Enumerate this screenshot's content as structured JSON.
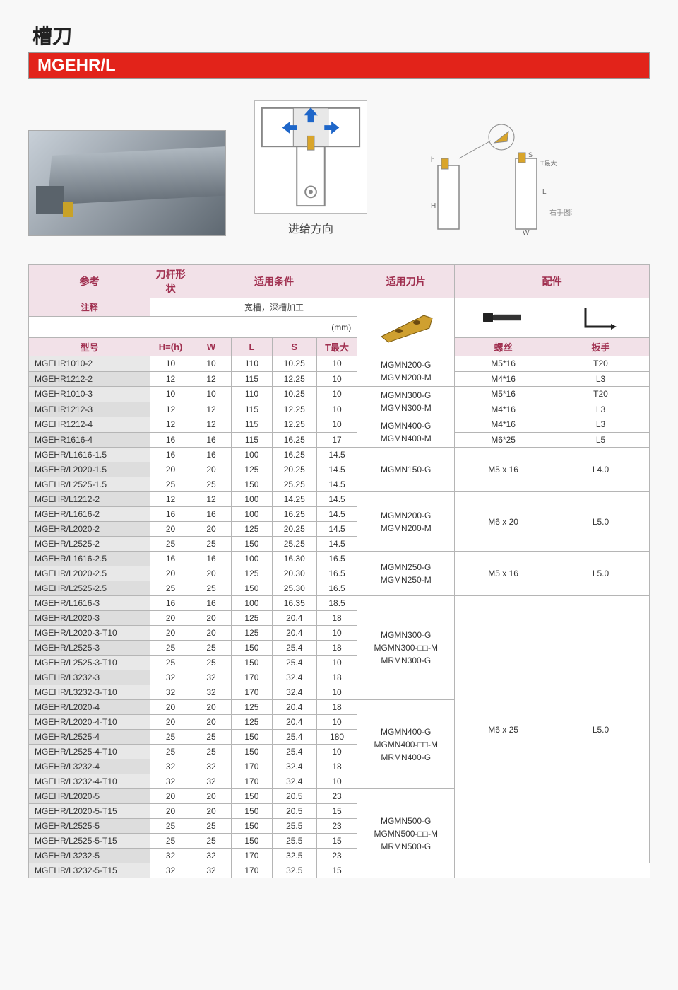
{
  "header": {
    "title": "槽刀",
    "model": "MGEHR/L",
    "title_color": "#222222",
    "bar_bg": "#e2231a",
    "bar_fg": "#ffffff"
  },
  "diagrams": {
    "feed_label": "进给方向",
    "right_annot": "右手图示"
  },
  "table": {
    "top_headers": {
      "ref": "参考",
      "shape": "刀杆形状",
      "conditions": "适用条件",
      "inserts": "适用刀片",
      "accessories": "配件"
    },
    "sub_headers": {
      "note": "注释",
      "cond_text": "宽槽，深槽加工",
      "unit": "(mm)"
    },
    "col_headers": {
      "model": "型号",
      "h": "H=(h)",
      "w": "W",
      "l": "L",
      "s": "S",
      "t": "T最大",
      "screw": "螺丝",
      "wrench": "扳手"
    },
    "colors": {
      "header_bg": "#f2e1e8",
      "header_fg": "#a03050",
      "border": "#b5b5b5",
      "row_alt_bg": "#e8e8e8"
    },
    "groups": [
      {
        "insert": "MGMN200-G\nMGMN200-M",
        "screw": "M5*16",
        "wrench": "T20",
        "rows": [
          [
            "MGEHR1010-2",
            "10",
            "10",
            "110",
            "10.25",
            "10"
          ]
        ]
      },
      {
        "insert": "",
        "screw": "M4*16",
        "wrench": "L3",
        "rows": [
          [
            "MGEHR1212-2",
            "12",
            "12",
            "115",
            "12.25",
            "10"
          ]
        ]
      },
      {
        "insert": "MGMN300-G\nMGMN300-M",
        "screw": "M5*16",
        "wrench": "T20",
        "rows": [
          [
            "MGEHR1010-3",
            "10",
            "10",
            "110",
            "10.25",
            "10"
          ]
        ]
      },
      {
        "insert": "",
        "screw": "M4*16",
        "wrench": "L3",
        "rows": [
          [
            "MGEHR1212-3",
            "12",
            "12",
            "115",
            "12.25",
            "10"
          ]
        ]
      },
      {
        "insert": "MGMN400-G\nMGMN400-M",
        "screw": "M4*16",
        "wrench": "L3",
        "rows": [
          [
            "MGEHR1212-4",
            "12",
            "12",
            "115",
            "12.25",
            "10"
          ]
        ]
      },
      {
        "insert": "",
        "screw": "M6*25",
        "wrench": "L5",
        "rows": [
          [
            "MGEHR1616-4",
            "16",
            "16",
            "115",
            "16.25",
            "17"
          ]
        ]
      },
      {
        "insert": "MGMN150-G",
        "screw": "M5 x 16",
        "wrench": "L4.0",
        "rows": [
          [
            "MGEHR/L1616-1.5",
            "16",
            "16",
            "100",
            "16.25",
            "14.5"
          ],
          [
            "MGEHR/L2020-1.5",
            "20",
            "20",
            "125",
            "20.25",
            "14.5"
          ],
          [
            "MGEHR/L2525-1.5",
            "25",
            "25",
            "150",
            "25.25",
            "14.5"
          ]
        ]
      },
      {
        "insert": "MGMN200-G\nMGMN200-M",
        "screw": "M6 x 20",
        "wrench": "L5.0",
        "rows": [
          [
            "MGEHR/L1212-2",
            "12",
            "12",
            "100",
            "14.25",
            "14.5"
          ],
          [
            "MGEHR/L1616-2",
            "16",
            "16",
            "100",
            "16.25",
            "14.5"
          ],
          [
            "MGEHR/L2020-2",
            "20",
            "20",
            "125",
            "20.25",
            "14.5"
          ],
          [
            "MGEHR/L2525-2",
            "25",
            "25",
            "150",
            "25.25",
            "14.5"
          ]
        ]
      },
      {
        "insert": "MGMN250-G\nMGMN250-M",
        "screw": "M5 x 16",
        "wrench": "L5.0",
        "rows": [
          [
            "MGEHR/L1616-2.5",
            "16",
            "16",
            "100",
            "16.30",
            "16.5"
          ],
          [
            "MGEHR/L2020-2.5",
            "20",
            "20",
            "125",
            "20.30",
            "16.5"
          ],
          [
            "MGEHR/L2525-2.5",
            "25",
            "25",
            "150",
            "25.30",
            "16.5"
          ]
        ]
      },
      {
        "insert": "MGMN300-G\nMGMN300-□□-M\nMRMN300-G",
        "screw": "M6 x 25",
        "wrench": "L5.0",
        "screw_span": 18,
        "wrench_span": 18,
        "rows": [
          [
            "MGEHR/L1616-3",
            "16",
            "16",
            "100",
            "16.35",
            "18.5"
          ],
          [
            "MGEHR/L2020-3",
            "20",
            "20",
            "125",
            "20.4",
            "18"
          ],
          [
            "MGEHR/L2020-3-T10",
            "20",
            "20",
            "125",
            "20.4",
            "10"
          ],
          [
            "MGEHR/L2525-3",
            "25",
            "25",
            "150",
            "25.4",
            "18"
          ],
          [
            "MGEHR/L2525-3-T10",
            "25",
            "25",
            "150",
            "25.4",
            "10"
          ],
          [
            "MGEHR/L3232-3",
            "32",
            "32",
            "170",
            "32.4",
            "18"
          ],
          [
            "MGEHR/L3232-3-T10",
            "32",
            "32",
            "170",
            "32.4",
            "10"
          ]
        ]
      },
      {
        "insert": "MGMN400-G\nMGMN400-□□-M\nMRMN400-G",
        "rows": [
          [
            "MGEHR/L2020-4",
            "20",
            "20",
            "125",
            "20.4",
            "18"
          ],
          [
            "MGEHR/L2020-4-T10",
            "20",
            "20",
            "125",
            "20.4",
            "10"
          ],
          [
            "MGEHR/L2525-4",
            "25",
            "25",
            "150",
            "25.4",
            "180"
          ],
          [
            "MGEHR/L2525-4-T10",
            "25",
            "25",
            "150",
            "25.4",
            "10"
          ],
          [
            "MGEHR/L3232-4",
            "32",
            "32",
            "170",
            "32.4",
            "18"
          ],
          [
            "MGEHR/L3232-4-T10",
            "32",
            "32",
            "170",
            "32.4",
            "10"
          ]
        ]
      },
      {
        "insert": "MGMN500-G\nMGMN500-□□-M\nMRMN500-G",
        "rows": [
          [
            "MGEHR/L2020-5",
            "20",
            "20",
            "150",
            "20.5",
            "23"
          ],
          [
            "MGEHR/L2020-5-T15",
            "20",
            "20",
            "150",
            "20.5",
            "15"
          ],
          [
            "MGEHR/L2525-5",
            "25",
            "25",
            "150",
            "25.5",
            "23"
          ],
          [
            "MGEHR/L2525-5-T15",
            "25",
            "25",
            "150",
            "25.5",
            "15"
          ],
          [
            "MGEHR/L3232-5",
            "32",
            "32",
            "170",
            "32.5",
            "23"
          ],
          [
            "MGEHR/L3232-5-T15",
            "32",
            "32",
            "170",
            "32.5",
            "15"
          ]
        ]
      }
    ]
  }
}
